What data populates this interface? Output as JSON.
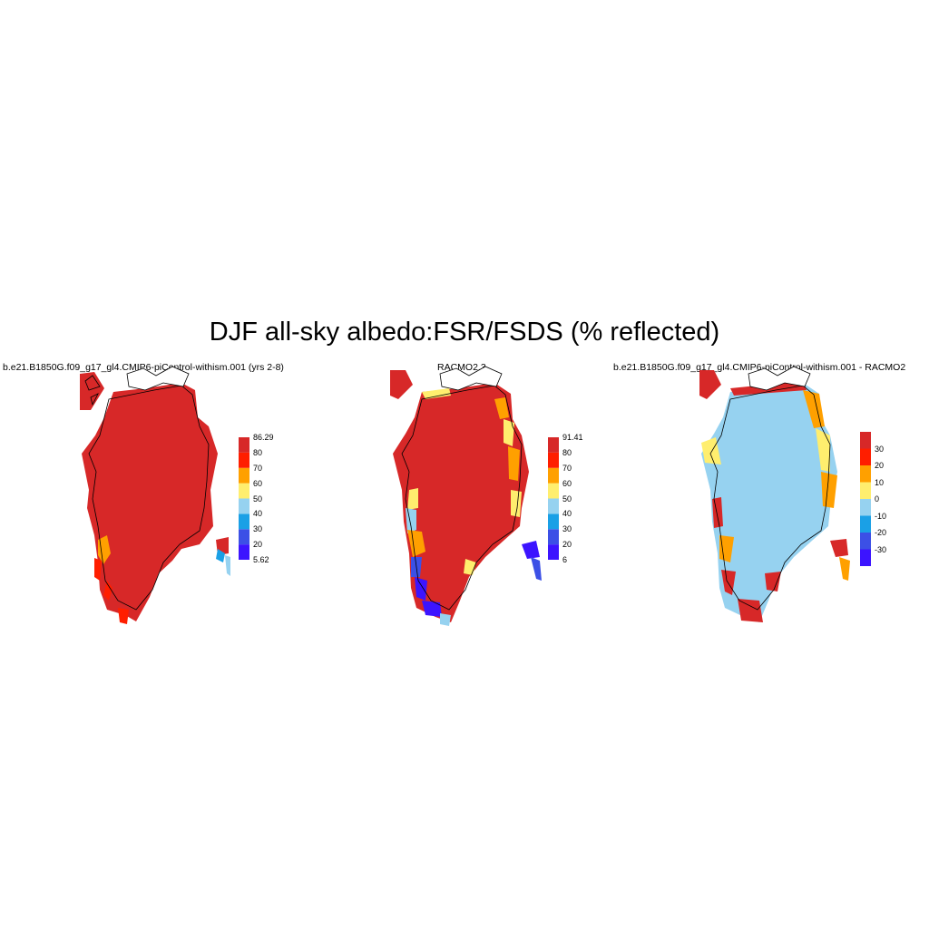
{
  "title": "DJF all-sky albedo:FSR/FSDS (% reflected)",
  "panels": [
    {
      "title": "b.e21.B1850G.f09_g17_gl4.CMIP6-piControl-withism.001 (yrs 2-8)",
      "colorbar": {
        "colors": [
          "#3c14ff",
          "#3c50e6",
          "#1aa0e6",
          "#96d2f0",
          "#ffee6e",
          "#ffa000",
          "#ff1e00",
          "#d72828"
        ],
        "labels": [
          "5.62",
          "20",
          "30",
          "40",
          "50",
          "60",
          "70",
          "80",
          "86.29"
        ]
      }
    },
    {
      "title": "RACMO2.3",
      "colorbar": {
        "colors": [
          "#3c14ff",
          "#3c50e6",
          "#1aa0e6",
          "#96d2f0",
          "#ffee6e",
          "#ffa000",
          "#ff1e00",
          "#d72828"
        ],
        "labels": [
          "6",
          "20",
          "30",
          "40",
          "50",
          "60",
          "70",
          "80",
          "91.41"
        ]
      }
    },
    {
      "title": "b.e21.B1850G.f09_g17_gl4.CMIP6-piControl-withism.001 - RACMO2",
      "colorbar": {
        "colors": [
          "#3c14ff",
          "#3c50e6",
          "#1aa0e6",
          "#96d2f0",
          "#ffee6e",
          "#ffa000",
          "#ff1e00",
          "#d72828"
        ],
        "labels": [
          "-30",
          "-20",
          "-10",
          "0",
          "10",
          "20",
          "30"
        ]
      }
    }
  ]
}
